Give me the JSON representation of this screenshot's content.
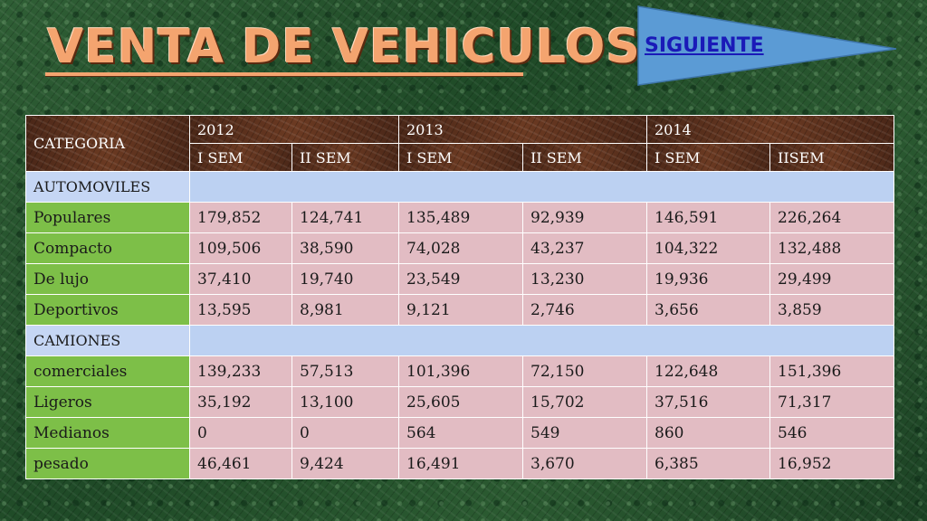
{
  "title": "VENTA DE VEHICULOS",
  "next_button": {
    "label": "SIGUIENTE"
  },
  "table": {
    "category_header": "CATEGORIA",
    "years": [
      "2012",
      "2013",
      "2014"
    ],
    "semesters": [
      "I SEM",
      "II SEM",
      "I SEM",
      "II SEM",
      "I SEM",
      "IISEM"
    ],
    "sections": [
      {
        "name": "AUTOMOVILES",
        "rows": [
          {
            "label": "Populares",
            "values": [
              "179,852",
              "124,741",
              "135,489",
              "92,939",
              "146,591",
              "226,264"
            ]
          },
          {
            "label": "Compacto",
            "values": [
              "109,506",
              "38,590",
              "74,028",
              "43,237",
              "104,322",
              "132,488"
            ]
          },
          {
            "label": "De lujo",
            "values": [
              "37,410",
              "19,740",
              "23,549",
              "13,230",
              "19,936",
              "29,499"
            ]
          },
          {
            "label": "Deportivos",
            "values": [
              "13,595",
              "8,981",
              "9,121",
              "2,746",
              "3,656",
              "3,859"
            ]
          }
        ]
      },
      {
        "name": "CAMIONES",
        "rows": [
          {
            "label": "comerciales",
            "values": [
              "139,233",
              "57,513",
              "101,396",
              "72,150",
              "122,648",
              "151,396"
            ]
          },
          {
            "label": "Ligeros",
            "values": [
              "35,192",
              "13,100",
              "25,605",
              "15,702",
              "37,516",
              "71,317"
            ]
          },
          {
            "label": "Medianos",
            "values": [
              "0",
              "0",
              "564",
              "549",
              "860",
              "546"
            ]
          },
          {
            "label": "pesado",
            "values": [
              "46,461",
              "9,424",
              "16,491",
              "3,670",
              "6,385",
              "16,952"
            ]
          }
        ]
      }
    ]
  },
  "colors": {
    "title": "#f4a46f",
    "header_brown": "#5a301d",
    "section_blue": "#bcd1f2",
    "label_green": "#7dbf48",
    "value_pink": "#e2bcc3",
    "pennant_blue": "#5b9bd5",
    "link_blue": "#1a1ab8"
  }
}
